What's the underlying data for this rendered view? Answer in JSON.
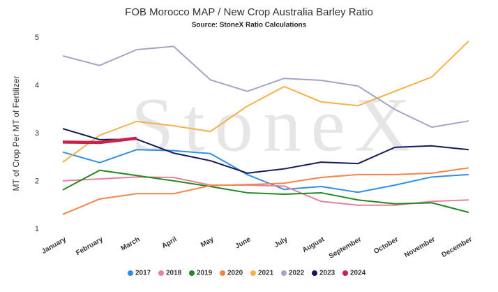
{
  "chart_data": {
    "type": "line",
    "title": "FOB Morocco MAP / New Crop Australia Barley Ratio",
    "subtitle": "Source: StoneX Ratio Calculations",
    "watermark": "StoneX",
    "y_label": "MT of Crop Per MT of Fertilizer",
    "categories": [
      "January",
      "February",
      "March",
      "April",
      "May",
      "June",
      "July",
      "August",
      "September",
      "October",
      "November",
      "December"
    ],
    "ylim": [
      1,
      5
    ],
    "yticks": [
      1,
      2,
      3,
      4,
      5
    ],
    "grid": false,
    "legend": "bottom",
    "series": [
      {
        "name": "2017",
        "color": "#2f8fe6",
        "values": [
          2.61,
          2.39,
          2.66,
          2.64,
          2.58,
          2.14,
          1.83,
          1.89,
          1.77,
          1.92,
          2.09,
          2.14
        ]
      },
      {
        "name": "2018",
        "color": "#e8819e",
        "values": [
          2.01,
          2.05,
          2.09,
          2.08,
          1.92,
          1.92,
          1.9,
          1.58,
          1.5,
          1.5,
          1.58,
          1.61
        ]
      },
      {
        "name": "2019",
        "color": "#1f8a1f",
        "values": [
          1.82,
          2.23,
          2.12,
          2.01,
          1.89,
          1.76,
          1.73,
          1.76,
          1.61,
          1.53,
          1.55,
          1.35
        ]
      },
      {
        "name": "2020",
        "color": "#f4844a",
        "values": [
          1.31,
          1.63,
          1.74,
          1.74,
          1.91,
          1.93,
          1.96,
          2.08,
          2.14,
          2.14,
          2.17,
          2.28
        ]
      },
      {
        "name": "2021",
        "color": "#f6b04a",
        "values": [
          2.4,
          2.96,
          3.25,
          3.16,
          3.04,
          3.57,
          3.98,
          3.66,
          3.58,
          3.88,
          4.18,
          4.93
        ]
      },
      {
        "name": "2022",
        "color": "#a4a4c6",
        "values": [
          4.62,
          4.42,
          4.75,
          4.82,
          4.12,
          3.88,
          4.15,
          4.11,
          3.99,
          3.5,
          3.13,
          3.26
        ]
      },
      {
        "name": "2023",
        "color": "#14195c",
        "values": [
          3.1,
          2.87,
          2.88,
          2.59,
          2.43,
          2.17,
          2.26,
          2.4,
          2.37,
          2.71,
          2.74,
          2.66
        ]
      },
      {
        "name": "2024",
        "color": "#c8234f",
        "values": [
          2.82,
          2.81,
          2.9,
          null,
          null,
          null,
          null,
          null,
          null,
          null,
          null,
          null
        ]
      }
    ]
  }
}
